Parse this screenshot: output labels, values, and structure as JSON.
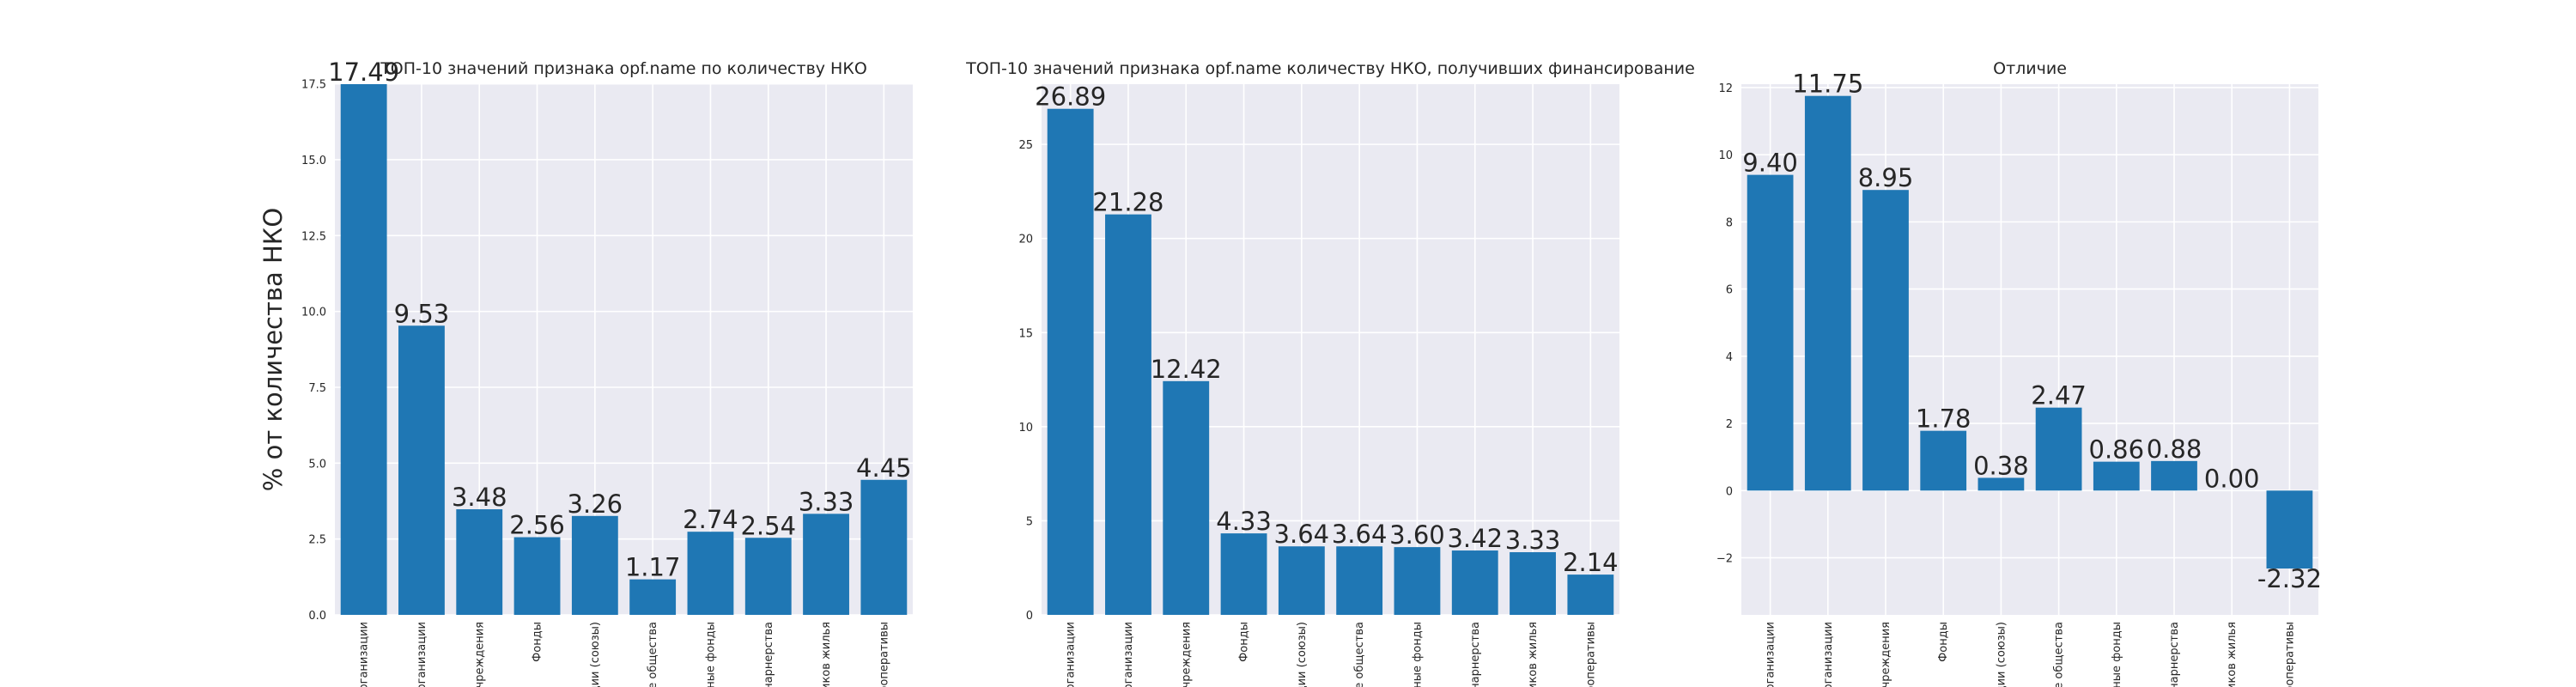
{
  "colors": {
    "bar": "#1f77b4",
    "plot_background": "#eaeaf2",
    "grid": "#ffffff",
    "text": "#262626"
  },
  "chart_data": [
    {
      "type": "bar",
      "title": "ТОП-10 значений признака opf.name по количеству НКО",
      "ylabel": "% от количества НКО",
      "xlabel": "",
      "categories": [
        "ерганизации",
        "рганизации",
        "учреждения",
        "Фонды",
        "щии (союзы)",
        "е общества",
        "ные фонды",
        "тнарнерства",
        "ников жилья",
        "ооперативы"
      ],
      "values": [
        17.49,
        9.53,
        3.48,
        2.56,
        3.26,
        1.17,
        2.74,
        2.54,
        3.33,
        4.45
      ],
      "data_labels": [
        "17.49",
        "9.53",
        "3.48",
        "2.56",
        "3.26",
        "1.17",
        "2.74",
        "2.54",
        "3.33",
        "4.45"
      ],
      "ylim": [
        0,
        17.49
      ],
      "yticks": [
        0,
        2.5,
        5,
        7.5,
        10,
        12.5,
        15,
        17.5
      ],
      "ytick_labels": [
        "0.0",
        "2.5",
        "5.0",
        "7.5",
        "10.0",
        "12.5",
        "15.0",
        "17.5"
      ],
      "grid": true
    },
    {
      "type": "bar",
      "title": "ТОП-10 значений признака opf.name количеству НКО, получивших финансирование",
      "ylabel": "",
      "xlabel": "",
      "categories": [
        "ерганизации",
        "рганизации",
        "учреждения",
        "Фонды",
        "щии (союзы)",
        "е общества",
        "ные фонды",
        "тнарнерства",
        "ников жилья",
        "ооперативы"
      ],
      "values": [
        26.89,
        21.28,
        12.42,
        4.33,
        3.64,
        3.64,
        3.6,
        3.42,
        3.33,
        2.14
      ],
      "data_labels": [
        "26.89",
        "21.28",
        "12.42",
        "4.33",
        "3.64",
        "3.64",
        "3.60",
        "3.42",
        "3.33",
        "2.14"
      ],
      "ylim": [
        0,
        28.2
      ],
      "yticks": [
        0,
        5,
        10,
        15,
        20,
        25
      ],
      "ytick_labels": [
        "0",
        "5",
        "10",
        "15",
        "20",
        "25"
      ],
      "grid": true
    },
    {
      "type": "bar",
      "title": "Отличие",
      "ylabel": "",
      "xlabel": "",
      "categories": [
        "ерганизации",
        "рганизации",
        "учреждения",
        "Фонды",
        "щии (союзы)",
        "е общества",
        "ные фонды",
        "тнарнерства",
        "ников жилья",
        "ооперативы"
      ],
      "values": [
        9.4,
        11.75,
        8.95,
        1.78,
        0.38,
        2.47,
        0.86,
        0.88,
        0.0,
        -2.32
      ],
      "data_labels": [
        "9.40",
        "11.75",
        "8.95",
        "1.78",
        "0.38",
        "2.47",
        "0.86",
        "0.88",
        "0.00",
        "-2.32"
      ],
      "ylim": [
        -3.7,
        12.1
      ],
      "yticks": [
        -2,
        0,
        2,
        4,
        6,
        8,
        10,
        12
      ],
      "ytick_labels": [
        "−2",
        "0",
        "2",
        "4",
        "6",
        "8",
        "10",
        "12"
      ],
      "grid": true
    }
  ]
}
